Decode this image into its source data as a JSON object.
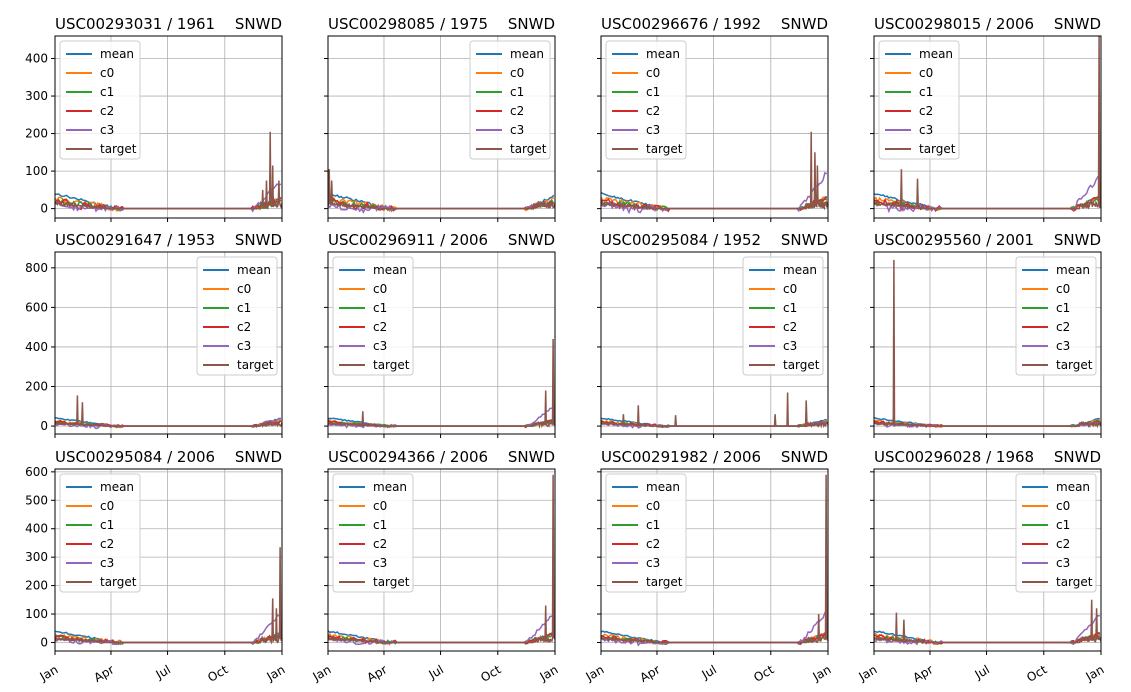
{
  "colors": {
    "mean": "#1f77b4",
    "c0": "#ff7f0e",
    "c1": "#2ca02c",
    "c2": "#d62728",
    "c3": "#9467bd",
    "target": "#8c564b",
    "grid": "#b0b0b0"
  },
  "chart_data": [
    {
      "type": "line",
      "title_left": "USC00293031 / 1961",
      "title_right": "SNWD",
      "row": 0,
      "col": 0,
      "legend": "upper-left",
      "x": [
        "Jan",
        "Apr",
        "Jul",
        "Oct",
        "Jan"
      ],
      "ylim": [
        -25,
        460
      ],
      "yticks": [
        0,
        100,
        200,
        300,
        400
      ],
      "series": [
        {
          "name": "mean"
        },
        {
          "name": "c0"
        },
        {
          "name": "c1"
        },
        {
          "name": "c2"
        },
        {
          "name": "c3"
        },
        {
          "name": "target"
        }
      ],
      "spikes": [
        [
          334,
          50
        ],
        [
          340,
          75
        ],
        [
          346,
          205
        ],
        [
          350,
          115
        ],
        [
          360,
          75
        ]
      ],
      "tail": [
        30,
        25,
        20,
        30,
        75
      ]
    },
    {
      "type": "line",
      "title_left": "USC00298085 / 1975",
      "title_right": "SNWD",
      "row": 0,
      "col": 1,
      "legend": "upper-right",
      "x": [
        "Jan",
        "Apr",
        "Jul",
        "Oct",
        "Jan"
      ],
      "ylim": [
        -25,
        460
      ],
      "yticks": [
        0,
        100,
        200,
        300,
        400
      ],
      "series": [
        {
          "name": "mean"
        },
        {
          "name": "c0"
        },
        {
          "name": "c1"
        },
        {
          "name": "c2"
        },
        {
          "name": "c3"
        },
        {
          "name": "target"
        }
      ],
      "spikes": [
        [
          2,
          105
        ],
        [
          6,
          75
        ]
      ],
      "tail": [
        35,
        25,
        20,
        20,
        15
      ]
    },
    {
      "type": "line",
      "title_left": "USC00296676 / 1992",
      "title_right": "SNWD",
      "row": 0,
      "col": 2,
      "legend": "upper-left",
      "x": [
        "Jan",
        "Apr",
        "Jul",
        "Oct",
        "Jan"
      ],
      "ylim": [
        -25,
        460
      ],
      "yticks": [
        0,
        100,
        200,
        300,
        400
      ],
      "series": [
        {
          "name": "mean"
        },
        {
          "name": "c0"
        },
        {
          "name": "c1"
        },
        {
          "name": "c2"
        },
        {
          "name": "c3"
        },
        {
          "name": "target"
        }
      ],
      "spikes": [
        [
          338,
          205
        ],
        [
          344,
          150
        ],
        [
          348,
          115
        ]
      ],
      "tail": [
        35,
        30,
        25,
        30,
        100
      ]
    },
    {
      "type": "line",
      "title_left": "USC00298015 / 2006",
      "title_right": "SNWD",
      "row": 0,
      "col": 3,
      "legend": "upper-left",
      "x": [
        "Jan",
        "Apr",
        "Jul",
        "Oct",
        "Jan"
      ],
      "ylim": [
        -25,
        460
      ],
      "yticks": [
        0,
        100,
        200,
        300,
        400
      ],
      "series": [
        {
          "name": "mean"
        },
        {
          "name": "c0"
        },
        {
          "name": "c1"
        },
        {
          "name": "c2"
        },
        {
          "name": "c3"
        },
        {
          "name": "target"
        }
      ],
      "spikes": [
        [
          44,
          105
        ],
        [
          70,
          80
        ],
        [
          362,
          460
        ]
      ],
      "tail": [
        35,
        30,
        25,
        30,
        90
      ]
    },
    {
      "type": "line",
      "title_left": "USC00291647 / 1953",
      "title_right": "SNWD",
      "row": 1,
      "col": 0,
      "legend": "upper-right",
      "x": [
        "Jan",
        "Apr",
        "Jul",
        "Oct",
        "Jan"
      ],
      "ylim": [
        -40,
        880
      ],
      "yticks": [
        0,
        200,
        400,
        600,
        800
      ],
      "series": [
        {
          "name": "mean"
        },
        {
          "name": "c0"
        },
        {
          "name": "c1"
        },
        {
          "name": "c2"
        },
        {
          "name": "c3"
        },
        {
          "name": "target"
        }
      ],
      "spikes": [
        [
          36,
          155
        ],
        [
          44,
          120
        ]
      ],
      "tail": [
        40,
        30,
        25,
        25,
        40
      ]
    },
    {
      "type": "line",
      "title_left": "USC00296911 / 2006",
      "title_right": "SNWD",
      "row": 1,
      "col": 1,
      "legend": "upper-left",
      "x": [
        "Jan",
        "Apr",
        "Jul",
        "Oct",
        "Jan"
      ],
      "ylim": [
        -40,
        880
      ],
      "yticks": [
        0,
        200,
        400,
        600,
        800
      ],
      "series": [
        {
          "name": "mean"
        },
        {
          "name": "c0"
        },
        {
          "name": "c1"
        },
        {
          "name": "c2"
        },
        {
          "name": "c3"
        },
        {
          "name": "target"
        }
      ],
      "spikes": [
        [
          56,
          75
        ],
        [
          350,
          180
        ],
        [
          362,
          440
        ]
      ],
      "tail": [
        35,
        30,
        25,
        30,
        100
      ]
    },
    {
      "type": "line",
      "title_left": "USC00295084 / 1952",
      "title_right": "SNWD",
      "row": 1,
      "col": 2,
      "legend": "upper-right",
      "x": [
        "Jan",
        "Apr",
        "Jul",
        "Oct",
        "Jan"
      ],
      "ylim": [
        -40,
        880
      ],
      "yticks": [
        0,
        200,
        400,
        600,
        800
      ],
      "series": [
        {
          "name": "mean"
        },
        {
          "name": "c0"
        },
        {
          "name": "c1"
        },
        {
          "name": "c2"
        },
        {
          "name": "c3"
        },
        {
          "name": "target"
        }
      ],
      "spikes": [
        [
          36,
          60
        ],
        [
          60,
          105
        ],
        [
          120,
          55
        ],
        [
          280,
          60
        ],
        [
          300,
          170
        ],
        [
          330,
          130
        ]
      ],
      "tail": [
        35,
        25,
        20,
        20,
        20
      ]
    },
    {
      "type": "line",
      "title_left": "USC00295560 / 2001",
      "title_right": "SNWD",
      "row": 1,
      "col": 3,
      "legend": "upper-right",
      "x": [
        "Jan",
        "Apr",
        "Jul",
        "Oct",
        "Jan"
      ],
      "ylim": [
        -40,
        880
      ],
      "yticks": [
        0,
        200,
        400,
        600,
        800
      ],
      "series": [
        {
          "name": "mean"
        },
        {
          "name": "c0"
        },
        {
          "name": "c1"
        },
        {
          "name": "c2"
        },
        {
          "name": "c3"
        },
        {
          "name": "target"
        }
      ],
      "spikes": [
        [
          32,
          840
        ]
      ],
      "tail": [
        40,
        30,
        25,
        20,
        20
      ]
    },
    {
      "type": "line",
      "title_left": "USC00295084 / 2006",
      "title_right": "SNWD",
      "row": 2,
      "col": 0,
      "legend": "upper-left",
      "x": [
        "Jan",
        "Apr",
        "Jul",
        "Oct",
        "Jan"
      ],
      "ylim": [
        -30,
        610
      ],
      "yticks": [
        0,
        100,
        200,
        300,
        400,
        500,
        600
      ],
      "series": [
        {
          "name": "mean"
        },
        {
          "name": "c0"
        },
        {
          "name": "c1"
        },
        {
          "name": "c2"
        },
        {
          "name": "c3"
        },
        {
          "name": "target"
        }
      ],
      "spikes": [
        [
          350,
          155
        ],
        [
          356,
          120
        ],
        [
          362,
          335
        ]
      ],
      "tail": [
        35,
        30,
        25,
        30,
        110
      ]
    },
    {
      "type": "line",
      "title_left": "USC00294366 / 2006",
      "title_right": "SNWD",
      "row": 2,
      "col": 1,
      "legend": "upper-left",
      "x": [
        "Jan",
        "Apr",
        "Jul",
        "Oct",
        "Jan"
      ],
      "ylim": [
        -30,
        610
      ],
      "yticks": [
        0,
        100,
        200,
        300,
        400,
        500,
        600
      ],
      "series": [
        {
          "name": "mean"
        },
        {
          "name": "c0"
        },
        {
          "name": "c1"
        },
        {
          "name": "c2"
        },
        {
          "name": "c3"
        },
        {
          "name": "target"
        }
      ],
      "spikes": [
        [
          350,
          130
        ],
        [
          362,
          590
        ]
      ],
      "tail": [
        35,
        30,
        25,
        30,
        110
      ]
    },
    {
      "type": "line",
      "title_left": "USC00291982 / 2006",
      "title_right": "SNWD",
      "row": 2,
      "col": 2,
      "legend": "upper-left",
      "x": [
        "Jan",
        "Apr",
        "Jul",
        "Oct",
        "Jan"
      ],
      "ylim": [
        -30,
        610
      ],
      "yticks": [
        0,
        100,
        200,
        300,
        400,
        500,
        600
      ],
      "series": [
        {
          "name": "mean"
        },
        {
          "name": "c0"
        },
        {
          "name": "c1"
        },
        {
          "name": "c2"
        },
        {
          "name": "c3"
        },
        {
          "name": "target"
        }
      ],
      "spikes": [
        [
          350,
          100
        ],
        [
          362,
          590
        ]
      ],
      "tail": [
        35,
        30,
        25,
        30,
        110
      ]
    },
    {
      "type": "line",
      "title_left": "USC00296028 / 1968",
      "title_right": "SNWD",
      "row": 2,
      "col": 3,
      "legend": "upper-right",
      "x": [
        "Jan",
        "Apr",
        "Jul",
        "Oct",
        "Jan"
      ],
      "ylim": [
        -30,
        610
      ],
      "yticks": [
        0,
        100,
        200,
        300,
        400,
        500,
        600
      ],
      "series": [
        {
          "name": "mean"
        },
        {
          "name": "c0"
        },
        {
          "name": "c1"
        },
        {
          "name": "c2"
        },
        {
          "name": "c3"
        },
        {
          "name": "target"
        }
      ],
      "spikes": [
        [
          36,
          105
        ],
        [
          48,
          80
        ],
        [
          350,
          150
        ],
        [
          358,
          120
        ]
      ],
      "tail": [
        35,
        30,
        25,
        30,
        100
      ]
    }
  ]
}
